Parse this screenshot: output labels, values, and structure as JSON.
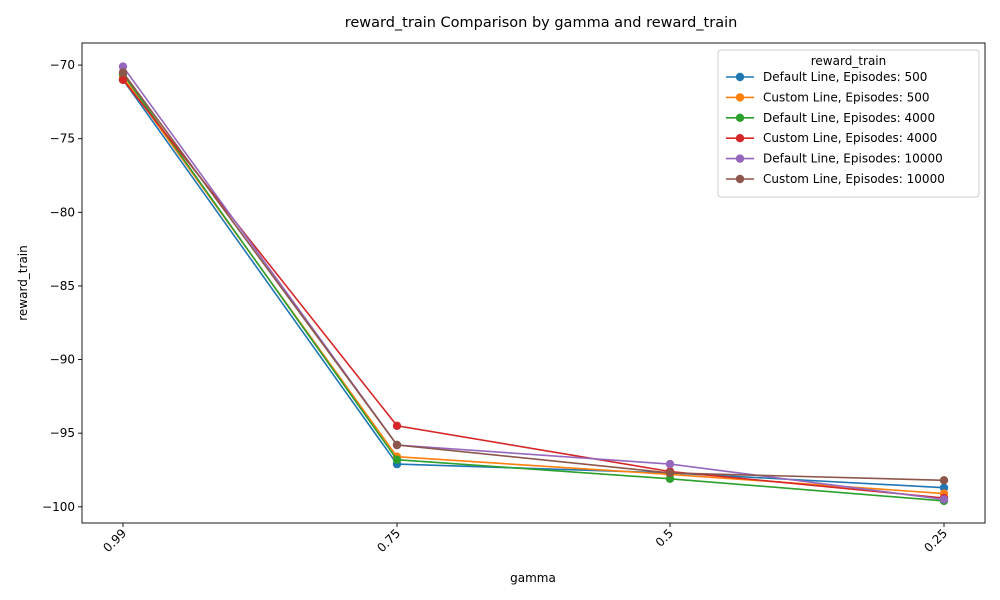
{
  "chart_data": {
    "type": "line",
    "title": "reward_train Comparison by gamma and reward_train",
    "xlabel": "gamma",
    "ylabel": "reward_train",
    "categories": [
      "0.99",
      "0.75",
      "0.5",
      "0.25"
    ],
    "ylim": [
      -101.1,
      -68.5
    ],
    "yticks": [
      -70,
      -75,
      -80,
      -85,
      -90,
      -95,
      -100
    ],
    "grid": false,
    "legend_title": "reward_train",
    "legend_position": "top-right",
    "series": [
      {
        "name": "Default Line, Episodes: 500",
        "color": "#1f77b4",
        "values": [
          -71.0,
          -97.1,
          -97.7,
          -98.7
        ]
      },
      {
        "name": "Custom Line, Episodes: 500",
        "color": "#ff7f0e",
        "values": [
          -70.8,
          -96.6,
          -97.8,
          -99.1
        ]
      },
      {
        "name": "Default Line, Episodes: 4000",
        "color": "#2ca02c",
        "values": [
          -70.6,
          -96.8,
          -98.1,
          -99.6
        ]
      },
      {
        "name": "Custom Line, Episodes: 4000",
        "color": "#d62728",
        "values": [
          -71.0,
          -94.5,
          -97.6,
          -99.4
        ]
      },
      {
        "name": "Default Line, Episodes: 10000",
        "color": "#9467bd",
        "values": [
          -70.1,
          -95.8,
          -97.1,
          -99.5
        ]
      },
      {
        "name": "Custom Line, Episodes: 10000",
        "color": "#8c564b",
        "values": [
          -70.5,
          -95.8,
          -97.7,
          -98.2
        ]
      }
    ]
  }
}
